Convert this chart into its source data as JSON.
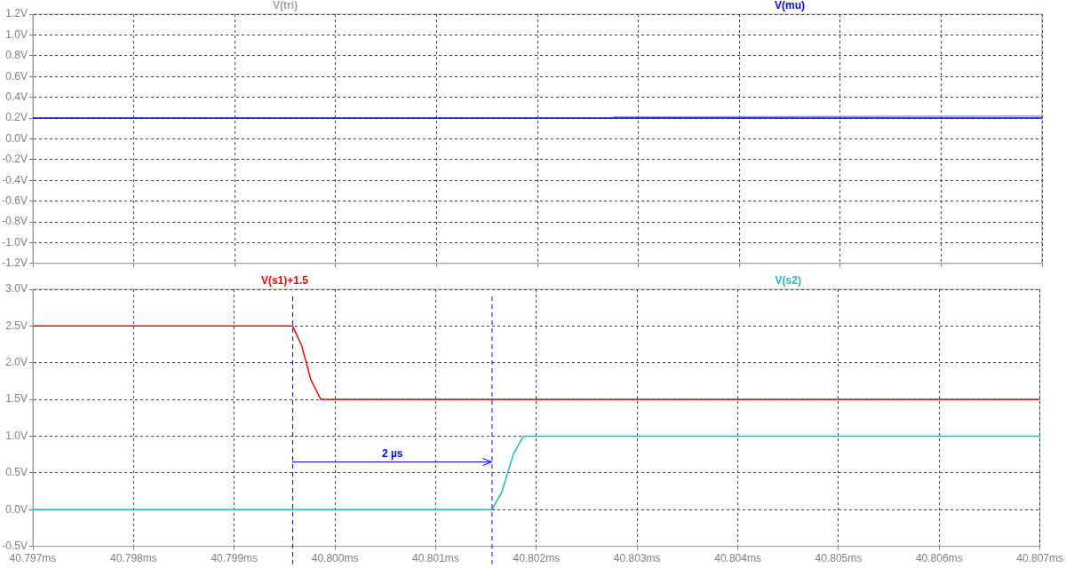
{
  "chart_data": [
    {
      "type": "line",
      "marker": "none",
      "line_style": "solid",
      "grid": true,
      "legend": "top",
      "tick_labels": "y",
      "xlim": [
        40.797,
        40.807
      ],
      "xticks": [
        {
          "value": 40.797,
          "label": null
        },
        {
          "value": 40.798,
          "label": null
        },
        {
          "value": 40.799,
          "label": null
        },
        {
          "value": 40.8,
          "label": null
        },
        {
          "value": 40.801,
          "label": null
        },
        {
          "value": 40.802,
          "label": null
        },
        {
          "value": 40.803,
          "label": null
        },
        {
          "value": 40.804,
          "label": null
        },
        {
          "value": 40.805,
          "label": null
        },
        {
          "value": 40.806,
          "label": null
        },
        {
          "value": 40.807,
          "label": null
        }
      ],
      "ylim": [
        -1.2,
        1.2
      ],
      "yticks": [
        {
          "value": -1.2,
          "label": "-1.2V"
        },
        {
          "value": -1.0,
          "label": "-1.0V"
        },
        {
          "value": -0.8,
          "label": "-0.8V"
        },
        {
          "value": -0.6,
          "label": "-0.6V"
        },
        {
          "value": -0.4,
          "label": "-0.4V"
        },
        {
          "value": -0.2,
          "label": "-0.2V"
        },
        {
          "value": 0,
          "label": "0.0V"
        },
        {
          "value": 0.2,
          "label": "0.2V"
        },
        {
          "value": 0.4,
          "label": "0.4V"
        },
        {
          "value": 0.6,
          "label": "0.6V"
        },
        {
          "value": 0.8,
          "label": "0.8V"
        },
        {
          "value": 1.0,
          "label": "1.0V"
        },
        {
          "value": 1.2,
          "label": "1.2V"
        }
      ],
      "series": [
        {
          "name": "V(tri)",
          "color": "#a0a0a0",
          "x": [
            40.80275,
            40.807
          ],
          "values": [
            0.21,
            0.22
          ]
        },
        {
          "name": "V(mu)",
          "color": "#0000ff",
          "x": [
            40.797,
            40.807
          ],
          "values": [
            0.2,
            0.2
          ]
        }
      ]
    },
    {
      "type": "line",
      "marker": "none",
      "line_style": "solid",
      "grid": true,
      "legend": "top",
      "xlim": [
        40.797,
        40.807
      ],
      "xticks": [
        {
          "value": 40.797,
          "label": "40.797ms"
        },
        {
          "value": 40.798,
          "label": "40.798ms"
        },
        {
          "value": 40.799,
          "label": "40.799ms"
        },
        {
          "value": 40.8,
          "label": "40.800ms"
        },
        {
          "value": 40.801,
          "label": "40.801ms"
        },
        {
          "value": 40.802,
          "label": "40.802ms"
        },
        {
          "value": 40.803,
          "label": "40.803ms"
        },
        {
          "value": 40.804,
          "label": "40.804ms"
        },
        {
          "value": 40.805,
          "label": "40.805ms"
        },
        {
          "value": 40.806,
          "label": "40.806ms"
        },
        {
          "value": 40.807,
          "label": "40.807ms"
        }
      ],
      "ylim": [
        -0.5,
        3.0
      ],
      "yticks": [
        {
          "value": -0.5,
          "label": "-0.5V"
        },
        {
          "value": 0,
          "label": "0.0V"
        },
        {
          "value": 0.5,
          "label": "0.5V"
        },
        {
          "value": 1.0,
          "label": "1.0V"
        },
        {
          "value": 1.5,
          "label": "1.5V"
        },
        {
          "value": 2.0,
          "label": "2.0V"
        },
        {
          "value": 2.5,
          "label": "2.5V"
        },
        {
          "value": 3.0,
          "label": "3.0V"
        }
      ],
      "series": [
        {
          "name": "V(s1)+1.5",
          "color": "#ff0000",
          "x": [
            40.797,
            40.79958,
            40.79967,
            40.79976,
            40.79986,
            40.807
          ],
          "values": [
            2.5,
            2.5,
            2.23,
            1.77,
            1.5,
            1.5
          ]
        },
        {
          "name": "V(s2)",
          "color": "#20b8b8",
          "x": [
            40.797,
            40.80156,
            40.80166,
            40.80177,
            40.80187,
            40.807
          ],
          "values": [
            0,
            0,
            0.25,
            0.75,
            1.0,
            1.0
          ]
        }
      ],
      "ref_lines": [
        {
          "axis": "x",
          "value": 40.79958,
          "color": "#0000ff",
          "line_style": "dashed"
        },
        {
          "axis": "x",
          "value": 40.80156,
          "color": "#0000ff",
          "line_style": "dashed"
        }
      ],
      "annotations": [
        "2 µs"
      ]
    }
  ]
}
